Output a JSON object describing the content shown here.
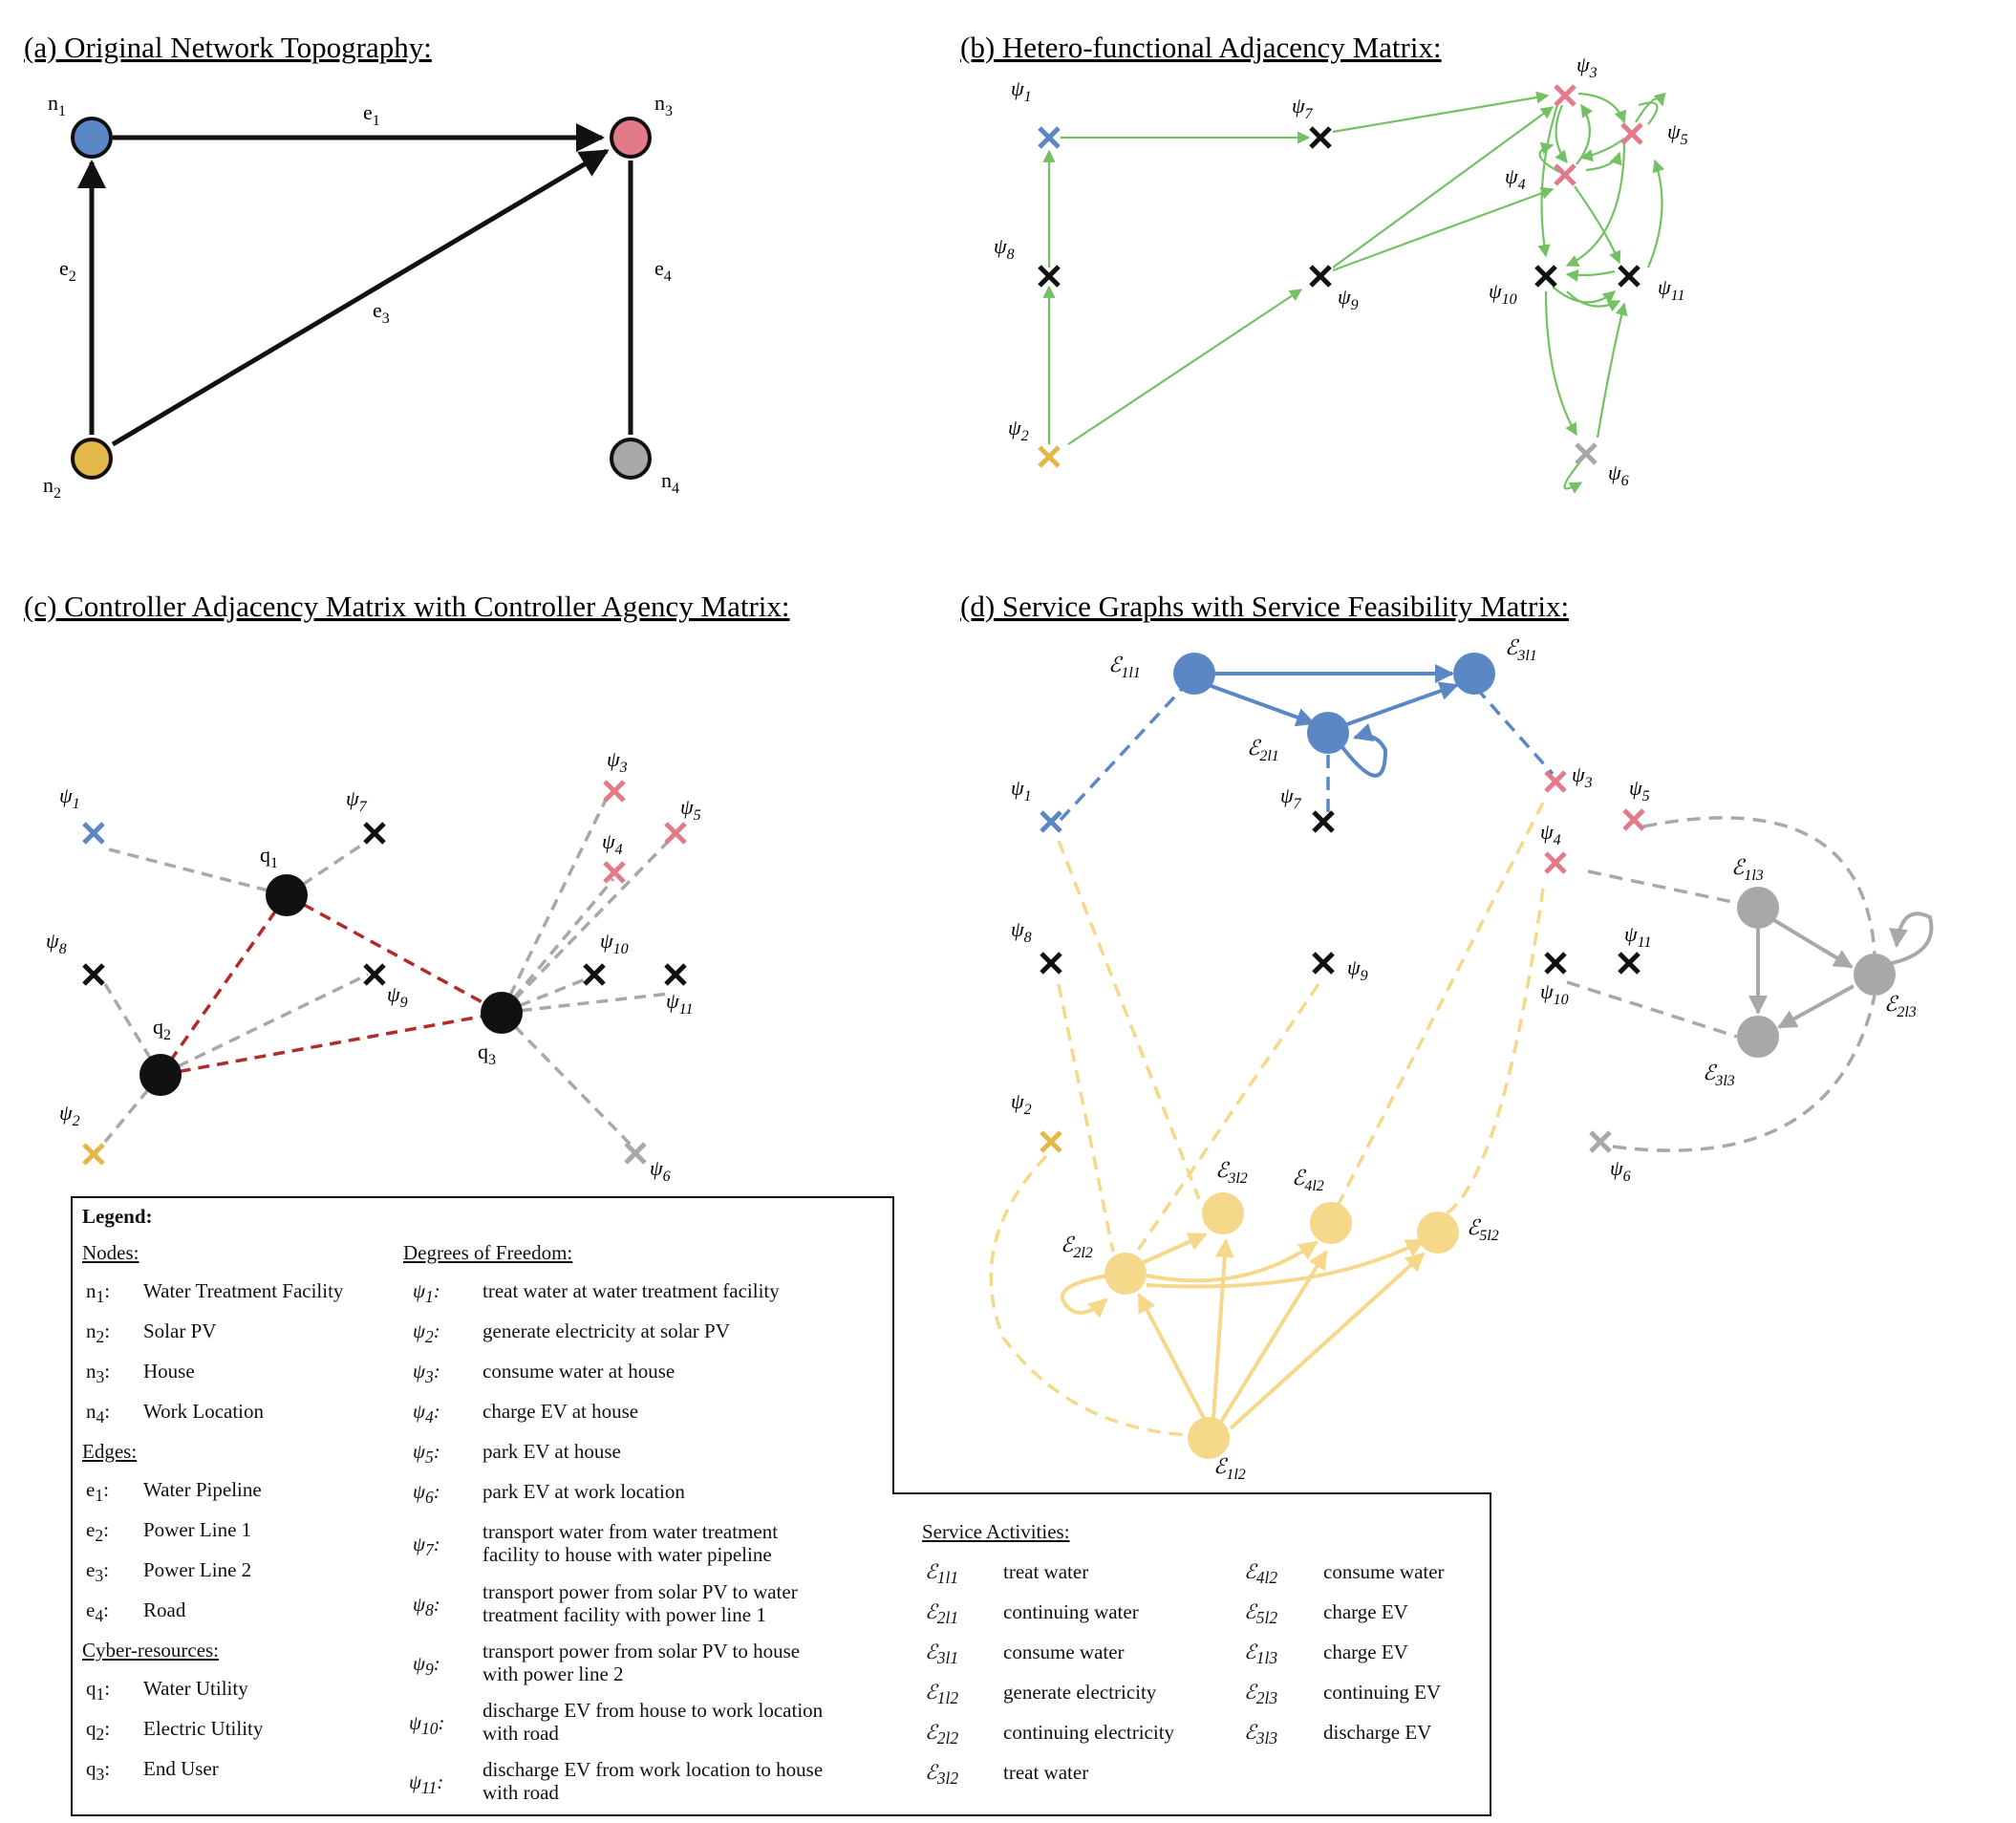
{
  "panels": {
    "a": {
      "title": "(a) Original Network Topography:"
    },
    "b": {
      "title": "(b) Hetero-functional Adjacency Matrix:"
    },
    "c": {
      "title": "(c) Controller Adjacency Matrix with Controller Agency Matrix:"
    },
    "d": {
      "title": "(d) Service Graphs with Service Feasibility Matrix:"
    }
  },
  "colors": {
    "blue": "#5b87c5",
    "yellow": "#e3b84a",
    "pink": "#e27a8a",
    "gray": "#a8a8a8",
    "black": "#111111",
    "green": "#74c164",
    "red": "#b22b2b",
    "light_yellow": "#f5d88a"
  },
  "network": {
    "nodes": [
      {
        "id": "n1",
        "label": "n",
        "sub": "1",
        "color": "blue"
      },
      {
        "id": "n2",
        "label": "n",
        "sub": "2",
        "color": "yellow"
      },
      {
        "id": "n3",
        "label": "n",
        "sub": "3",
        "color": "pink"
      },
      {
        "id": "n4",
        "label": "n",
        "sub": "4",
        "color": "gray"
      }
    ],
    "edges": [
      {
        "id": "e1",
        "label": "e",
        "sub": "1",
        "from": "n1",
        "to": "n3",
        "directed": true
      },
      {
        "id": "e2",
        "label": "e",
        "sub": "2",
        "from": "n2",
        "to": "n1",
        "directed": true
      },
      {
        "id": "e3",
        "label": "e",
        "sub": "3",
        "from": "n2",
        "to": "n3",
        "directed": true
      },
      {
        "id": "e4",
        "label": "e",
        "sub": "4",
        "from": "n3",
        "to": "n4",
        "directed": false
      }
    ]
  },
  "dof_labels": {
    "psi1": {
      "label": "ψ",
      "sub": "1"
    },
    "psi2": {
      "label": "ψ",
      "sub": "2"
    },
    "psi3": {
      "label": "ψ",
      "sub": "3"
    },
    "psi4": {
      "label": "ψ",
      "sub": "4"
    },
    "psi5": {
      "label": "ψ",
      "sub": "5"
    },
    "psi6": {
      "label": "ψ",
      "sub": "6"
    },
    "psi7": {
      "label": "ψ",
      "sub": "7"
    },
    "psi8": {
      "label": "ψ",
      "sub": "8"
    },
    "psi9": {
      "label": "ψ",
      "sub": "9"
    },
    "psi10": {
      "label": "ψ",
      "sub": "10"
    },
    "psi11": {
      "label": "ψ",
      "sub": "11"
    }
  },
  "controllers": [
    {
      "id": "q1",
      "label": "q",
      "sub": "1"
    },
    {
      "id": "q2",
      "label": "q",
      "sub": "2"
    },
    {
      "id": "q3",
      "label": "q",
      "sub": "3"
    }
  ],
  "service_labels": {
    "s111": {
      "label": "ℰ",
      "sub": "1l1"
    },
    "s211": {
      "label": "ℰ",
      "sub": "2l1"
    },
    "s311": {
      "label": "ℰ",
      "sub": "3l1"
    },
    "s112": {
      "label": "ℰ",
      "sub": "1l2"
    },
    "s212": {
      "label": "ℰ",
      "sub": "2l2"
    },
    "s312": {
      "label": "ℰ",
      "sub": "3l2"
    },
    "s412": {
      "label": "ℰ",
      "sub": "4l2"
    },
    "s512": {
      "label": "ℰ",
      "sub": "5l2"
    },
    "s113": {
      "label": "ℰ",
      "sub": "1l3"
    },
    "s213": {
      "label": "ℰ",
      "sub": "2l3"
    },
    "s313": {
      "label": "ℰ",
      "sub": "3l3"
    }
  },
  "legend": {
    "heading": "Legend:",
    "nodes_heading": "Nodes:",
    "nodes": [
      {
        "sym": "n",
        "sub": "1",
        "text": "Water Treatment Facility"
      },
      {
        "sym": "n",
        "sub": "2",
        "text": "Solar PV"
      },
      {
        "sym": "n",
        "sub": "3",
        "text": "House"
      },
      {
        "sym": "n",
        "sub": "4",
        "text": "Work Location"
      }
    ],
    "edges_heading": "Edges:",
    "edges": [
      {
        "sym": "e",
        "sub": "1",
        "text": "Water Pipeline"
      },
      {
        "sym": "e",
        "sub": "2",
        "text": "Power Line 1"
      },
      {
        "sym": "e",
        "sub": "3",
        "text": "Power Line 2"
      },
      {
        "sym": "e",
        "sub": "4",
        "text": "Road"
      }
    ],
    "cyber_heading": "Cyber-resources:",
    "cyber": [
      {
        "sym": "q",
        "sub": "1",
        "text": "Water Utility"
      },
      {
        "sym": "q",
        "sub": "2",
        "text": "Electric Utility"
      },
      {
        "sym": "q",
        "sub": "3",
        "text": "End User"
      }
    ],
    "dof_heading": "Degrees of Freedom:",
    "dof": [
      {
        "sym": "ψ",
        "sub": "1",
        "text": "treat water at water treatment facility"
      },
      {
        "sym": "ψ",
        "sub": "2",
        "text": "generate electricity at solar PV"
      },
      {
        "sym": "ψ",
        "sub": "3",
        "text": "consume water at house"
      },
      {
        "sym": "ψ",
        "sub": "4",
        "text": "charge EV at house"
      },
      {
        "sym": "ψ",
        "sub": "5",
        "text": "park EV at house"
      },
      {
        "sym": "ψ",
        "sub": "6",
        "text": "park EV at work location"
      },
      {
        "sym": "ψ",
        "sub": "7",
        "text": "transport water from water treatment",
        "text2": "facility to house with water pipeline"
      },
      {
        "sym": "ψ",
        "sub": "8",
        "text": "transport power from solar PV to water",
        "text2": "treatment facility with power line 1"
      },
      {
        "sym": "ψ",
        "sub": "9",
        "text": "transport power from solar PV to house",
        "text2": "with power line 2"
      },
      {
        "sym": "ψ",
        "sub": "10",
        "text": "discharge EV from house to work location",
        "text2": "with road"
      },
      {
        "sym": "ψ",
        "sub": "11",
        "text": "discharge EV from work location to house",
        "text2": "with road"
      }
    ],
    "service_heading": "Service Activities:",
    "services_left": [
      {
        "sym": "ℰ",
        "sub": "1l1",
        "text": "treat water"
      },
      {
        "sym": "ℰ",
        "sub": "2l1",
        "text": "continuing water"
      },
      {
        "sym": "ℰ",
        "sub": "3l1",
        "text": "consume water"
      },
      {
        "sym": "ℰ",
        "sub": "1l2",
        "text": "generate electricity"
      },
      {
        "sym": "ℰ",
        "sub": "2l2",
        "text": "continuing electricity"
      },
      {
        "sym": "ℰ",
        "sub": "3l2",
        "text": "treat water"
      }
    ],
    "services_right": [
      {
        "sym": "ℰ",
        "sub": "4l2",
        "text": "consume water"
      },
      {
        "sym": "ℰ",
        "sub": "5l2",
        "text": "charge EV"
      },
      {
        "sym": "ℰ",
        "sub": "1l3",
        "text": "charge EV"
      },
      {
        "sym": "ℰ",
        "sub": "2l3",
        "text": "continuing EV"
      },
      {
        "sym": "ℰ",
        "sub": "3l3",
        "text": "discharge EV"
      }
    ]
  }
}
